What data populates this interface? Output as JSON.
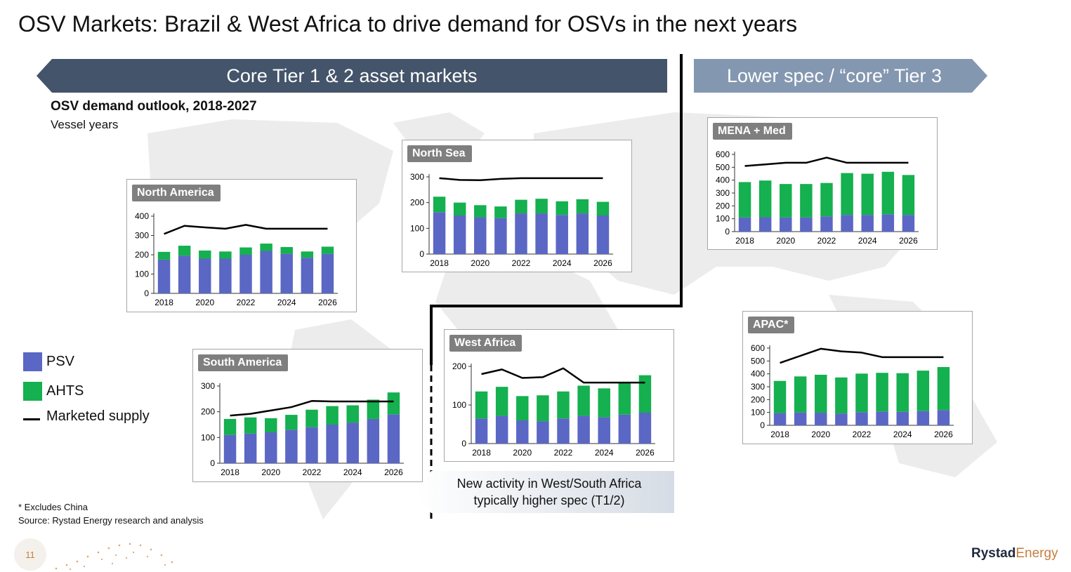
{
  "title": "OSV Markets: Brazil & West Africa to drive demand for OSVs in the next years",
  "banners": {
    "core": "Core Tier 1 & 2 asset markets",
    "lower": "Lower spec / “core” Tier 3"
  },
  "subtitle": "OSV demand outlook, 2018-2027",
  "units": "Vessel years",
  "legend": {
    "psv": "PSV",
    "ahts": "AHTS",
    "supply": "Marketed supply"
  },
  "callout": "New activity in West/South Africa typically higher spec (T1/2)",
  "footnote": "* Excludes China",
  "source": "Source: Rystad Energy research and analysis",
  "page_number": "11",
  "logo": {
    "bold": "Rystad",
    "light": "Energy"
  },
  "colors": {
    "psv": "#5b67c4",
    "ahts": "#15b04f",
    "supply": "#000000",
    "banner_core": "#44546a",
    "banner_lower": "#8497b0"
  },
  "chart_data": [
    {
      "id": "north-america",
      "type": "bar",
      "stacked": true,
      "title": "North America",
      "categories": [
        2018,
        2019,
        2020,
        2021,
        2022,
        2023,
        2024,
        2025,
        2026
      ],
      "xticks": [
        "2018",
        "2020",
        "2022",
        "2024",
        "2026"
      ],
      "ylim": [
        0,
        400
      ],
      "yticks": [
        0,
        100,
        200,
        300,
        400
      ],
      "series": [
        {
          "name": "PSV",
          "values": [
            175,
            195,
            180,
            180,
            200,
            220,
            205,
            185,
            205
          ]
        },
        {
          "name": "AHTS",
          "values": [
            40,
            52,
            42,
            37,
            38,
            38,
            35,
            32,
            37
          ]
        },
        {
          "name": "Marketed supply",
          "kind": "line",
          "values": [
            308,
            350,
            342,
            335,
            355,
            335,
            335,
            335,
            335
          ]
        }
      ]
    },
    {
      "id": "north-sea",
      "type": "bar",
      "stacked": true,
      "title": "North Sea",
      "categories": [
        2018,
        2019,
        2020,
        2021,
        2022,
        2023,
        2024,
        2025,
        2026
      ],
      "xticks": [
        "2018",
        "2020",
        "2022",
        "2024",
        "2026"
      ],
      "ylim": [
        0,
        300
      ],
      "yticks": [
        0,
        100,
        200,
        300
      ],
      "series": [
        {
          "name": "PSV",
          "values": [
            163,
            150,
            143,
            140,
            158,
            158,
            152,
            158,
            150
          ]
        },
        {
          "name": "AHTS",
          "values": [
            60,
            50,
            47,
            45,
            53,
            57,
            53,
            55,
            53
          ]
        },
        {
          "name": "Marketed supply",
          "kind": "line",
          "values": [
            295,
            288,
            287,
            292,
            295,
            295,
            295,
            295,
            295
          ]
        }
      ]
    },
    {
      "id": "mena-med",
      "type": "bar",
      "stacked": true,
      "title": "MENA + Med",
      "categories": [
        2018,
        2019,
        2020,
        2021,
        2022,
        2023,
        2024,
        2025,
        2026
      ],
      "xticks": [
        "2018",
        "2020",
        "2022",
        "2024",
        "2026"
      ],
      "ylim": [
        0,
        600
      ],
      "yticks": [
        0,
        100,
        200,
        300,
        400,
        500,
        600
      ],
      "series": [
        {
          "name": "PSV",
          "values": [
            110,
            112,
            110,
            110,
            118,
            130,
            130,
            135,
            130
          ]
        },
        {
          "name": "AHTS",
          "values": [
            275,
            285,
            260,
            260,
            260,
            325,
            320,
            330,
            310
          ]
        },
        {
          "name": "Marketed supply",
          "kind": "line",
          "values": [
            510,
            522,
            535,
            535,
            575,
            535,
            535,
            535,
            535
          ]
        }
      ]
    },
    {
      "id": "south-america",
      "type": "bar",
      "stacked": true,
      "title": "South America",
      "categories": [
        2018,
        2019,
        2020,
        2021,
        2022,
        2023,
        2024,
        2025,
        2026
      ],
      "xticks": [
        "2018",
        "2020",
        "2022",
        "2024",
        "2026"
      ],
      "ylim": [
        0,
        300
      ],
      "yticks": [
        0,
        100,
        200,
        300
      ],
      "series": [
        {
          "name": "PSV",
          "values": [
            110,
            115,
            120,
            130,
            140,
            150,
            158,
            172,
            190
          ]
        },
        {
          "name": "AHTS",
          "values": [
            62,
            63,
            55,
            58,
            68,
            72,
            67,
            75,
            85
          ]
        },
        {
          "name": "Marketed supply",
          "kind": "line",
          "values": [
            185,
            192,
            205,
            218,
            242,
            240,
            240,
            240,
            240
          ]
        }
      ]
    },
    {
      "id": "west-africa",
      "type": "bar",
      "stacked": true,
      "title": "West Africa",
      "categories": [
        2018,
        2019,
        2020,
        2021,
        2022,
        2023,
        2024,
        2025,
        2026
      ],
      "xticks": [
        "2018",
        "2020",
        "2022",
        "2024",
        "2026"
      ],
      "ylim": [
        0,
        200
      ],
      "yticks": [
        0,
        100,
        200
      ],
      "series": [
        {
          "name": "PSV",
          "values": [
            65,
            72,
            60,
            58,
            65,
            72,
            68,
            75,
            80
          ]
        },
        {
          "name": "AHTS",
          "values": [
            70,
            75,
            63,
            67,
            70,
            78,
            75,
            83,
            97
          ]
        },
        {
          "name": "Marketed supply",
          "kind": "line",
          "values": [
            180,
            192,
            170,
            172,
            195,
            158,
            158,
            158,
            158
          ]
        }
      ]
    },
    {
      "id": "apac",
      "type": "bar",
      "stacked": true,
      "title": "APAC*",
      "categories": [
        2018,
        2019,
        2020,
        2021,
        2022,
        2023,
        2024,
        2025,
        2026
      ],
      "xticks": [
        "2018",
        "2020",
        "2022",
        "2024",
        "2026"
      ],
      "ylim": [
        0,
        600
      ],
      "yticks": [
        0,
        100,
        200,
        300,
        400,
        500,
        600
      ],
      "series": [
        {
          "name": "PSV",
          "values": [
            95,
            100,
            98,
            92,
            102,
            108,
            105,
            110,
            118
          ]
        },
        {
          "name": "AHTS",
          "values": [
            250,
            280,
            295,
            280,
            300,
            300,
            300,
            315,
            335
          ]
        },
        {
          "name": "Marketed supply",
          "kind": "line",
          "values": [
            485,
            540,
            595,
            575,
            565,
            530,
            530,
            530,
            530
          ]
        }
      ]
    }
  ]
}
